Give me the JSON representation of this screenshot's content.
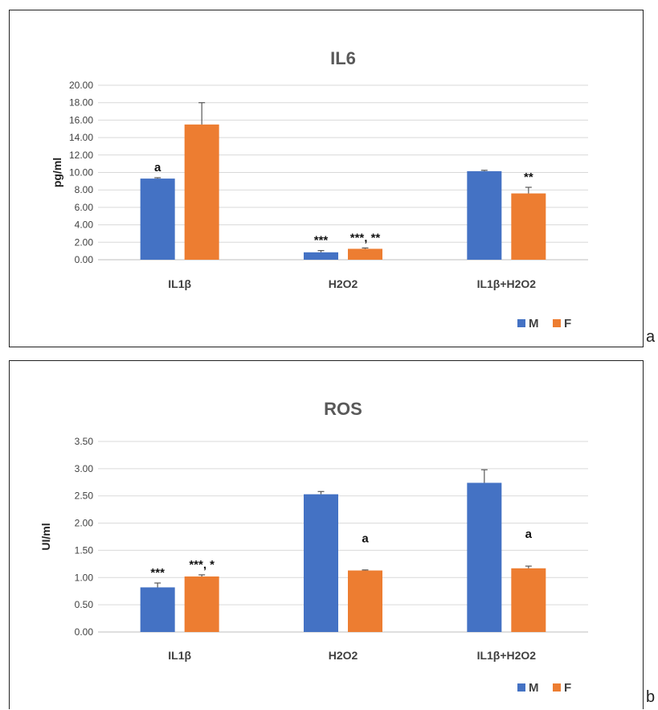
{
  "panel_labels": [
    "a",
    "b"
  ],
  "colors": {
    "M": "#4472c4",
    "F": "#ed7d31",
    "grid": "#d9d9d9",
    "error": "#595959"
  },
  "chart_data": [
    {
      "type": "bar",
      "title": "IL6",
      "ylabel": "pg/ml",
      "xlabel": "",
      "ylim": [
        0,
        20
      ],
      "ytick_step": 2,
      "ytick_decimals": 2,
      "grid": true,
      "legend_position": "bottom-right",
      "categories": [
        "IL1β",
        "H2O2",
        "IL1β+H2O2"
      ],
      "series": [
        {
          "name": "M",
          "values": [
            9.3,
            0.85,
            10.15
          ],
          "errors": [
            0.1,
            0.2,
            0.1
          ]
        },
        {
          "name": "F",
          "values": [
            15.5,
            1.25,
            7.6
          ],
          "errors": [
            2.5,
            0.1,
            0.7
          ]
        }
      ],
      "annotations": [
        {
          "category": 0,
          "series": 0,
          "text": "a"
        },
        {
          "category": 1,
          "series": 0,
          "text": "***"
        },
        {
          "category": 1,
          "series": 1,
          "text": "***, **"
        },
        {
          "category": 2,
          "series": 1,
          "text": "**"
        }
      ]
    },
    {
      "type": "bar",
      "title": "ROS",
      "ylabel": "UI/ml",
      "xlabel": "",
      "ylim": [
        0,
        3.5
      ],
      "ytick_step": 0.5,
      "ytick_decimals": 2,
      "grid": true,
      "legend_position": "bottom-right",
      "categories": [
        "IL1β",
        "H2O2",
        "IL1β+H2O2"
      ],
      "series": [
        {
          "name": "M",
          "values": [
            0.82,
            2.53,
            2.74
          ],
          "errors": [
            0.08,
            0.05,
            0.24
          ]
        },
        {
          "name": "F",
          "values": [
            1.02,
            1.13,
            1.17
          ],
          "errors": [
            0.03,
            0.01,
            0.04
          ]
        }
      ],
      "annotations": [
        {
          "category": 0,
          "series": 0,
          "text": "***"
        },
        {
          "category": 0,
          "series": 1,
          "text": "***, *"
        },
        {
          "category": 1,
          "series": 1,
          "text": "a",
          "y": 1.65
        },
        {
          "category": 2,
          "series": 1,
          "text": "a",
          "y": 1.73
        }
      ]
    }
  ]
}
